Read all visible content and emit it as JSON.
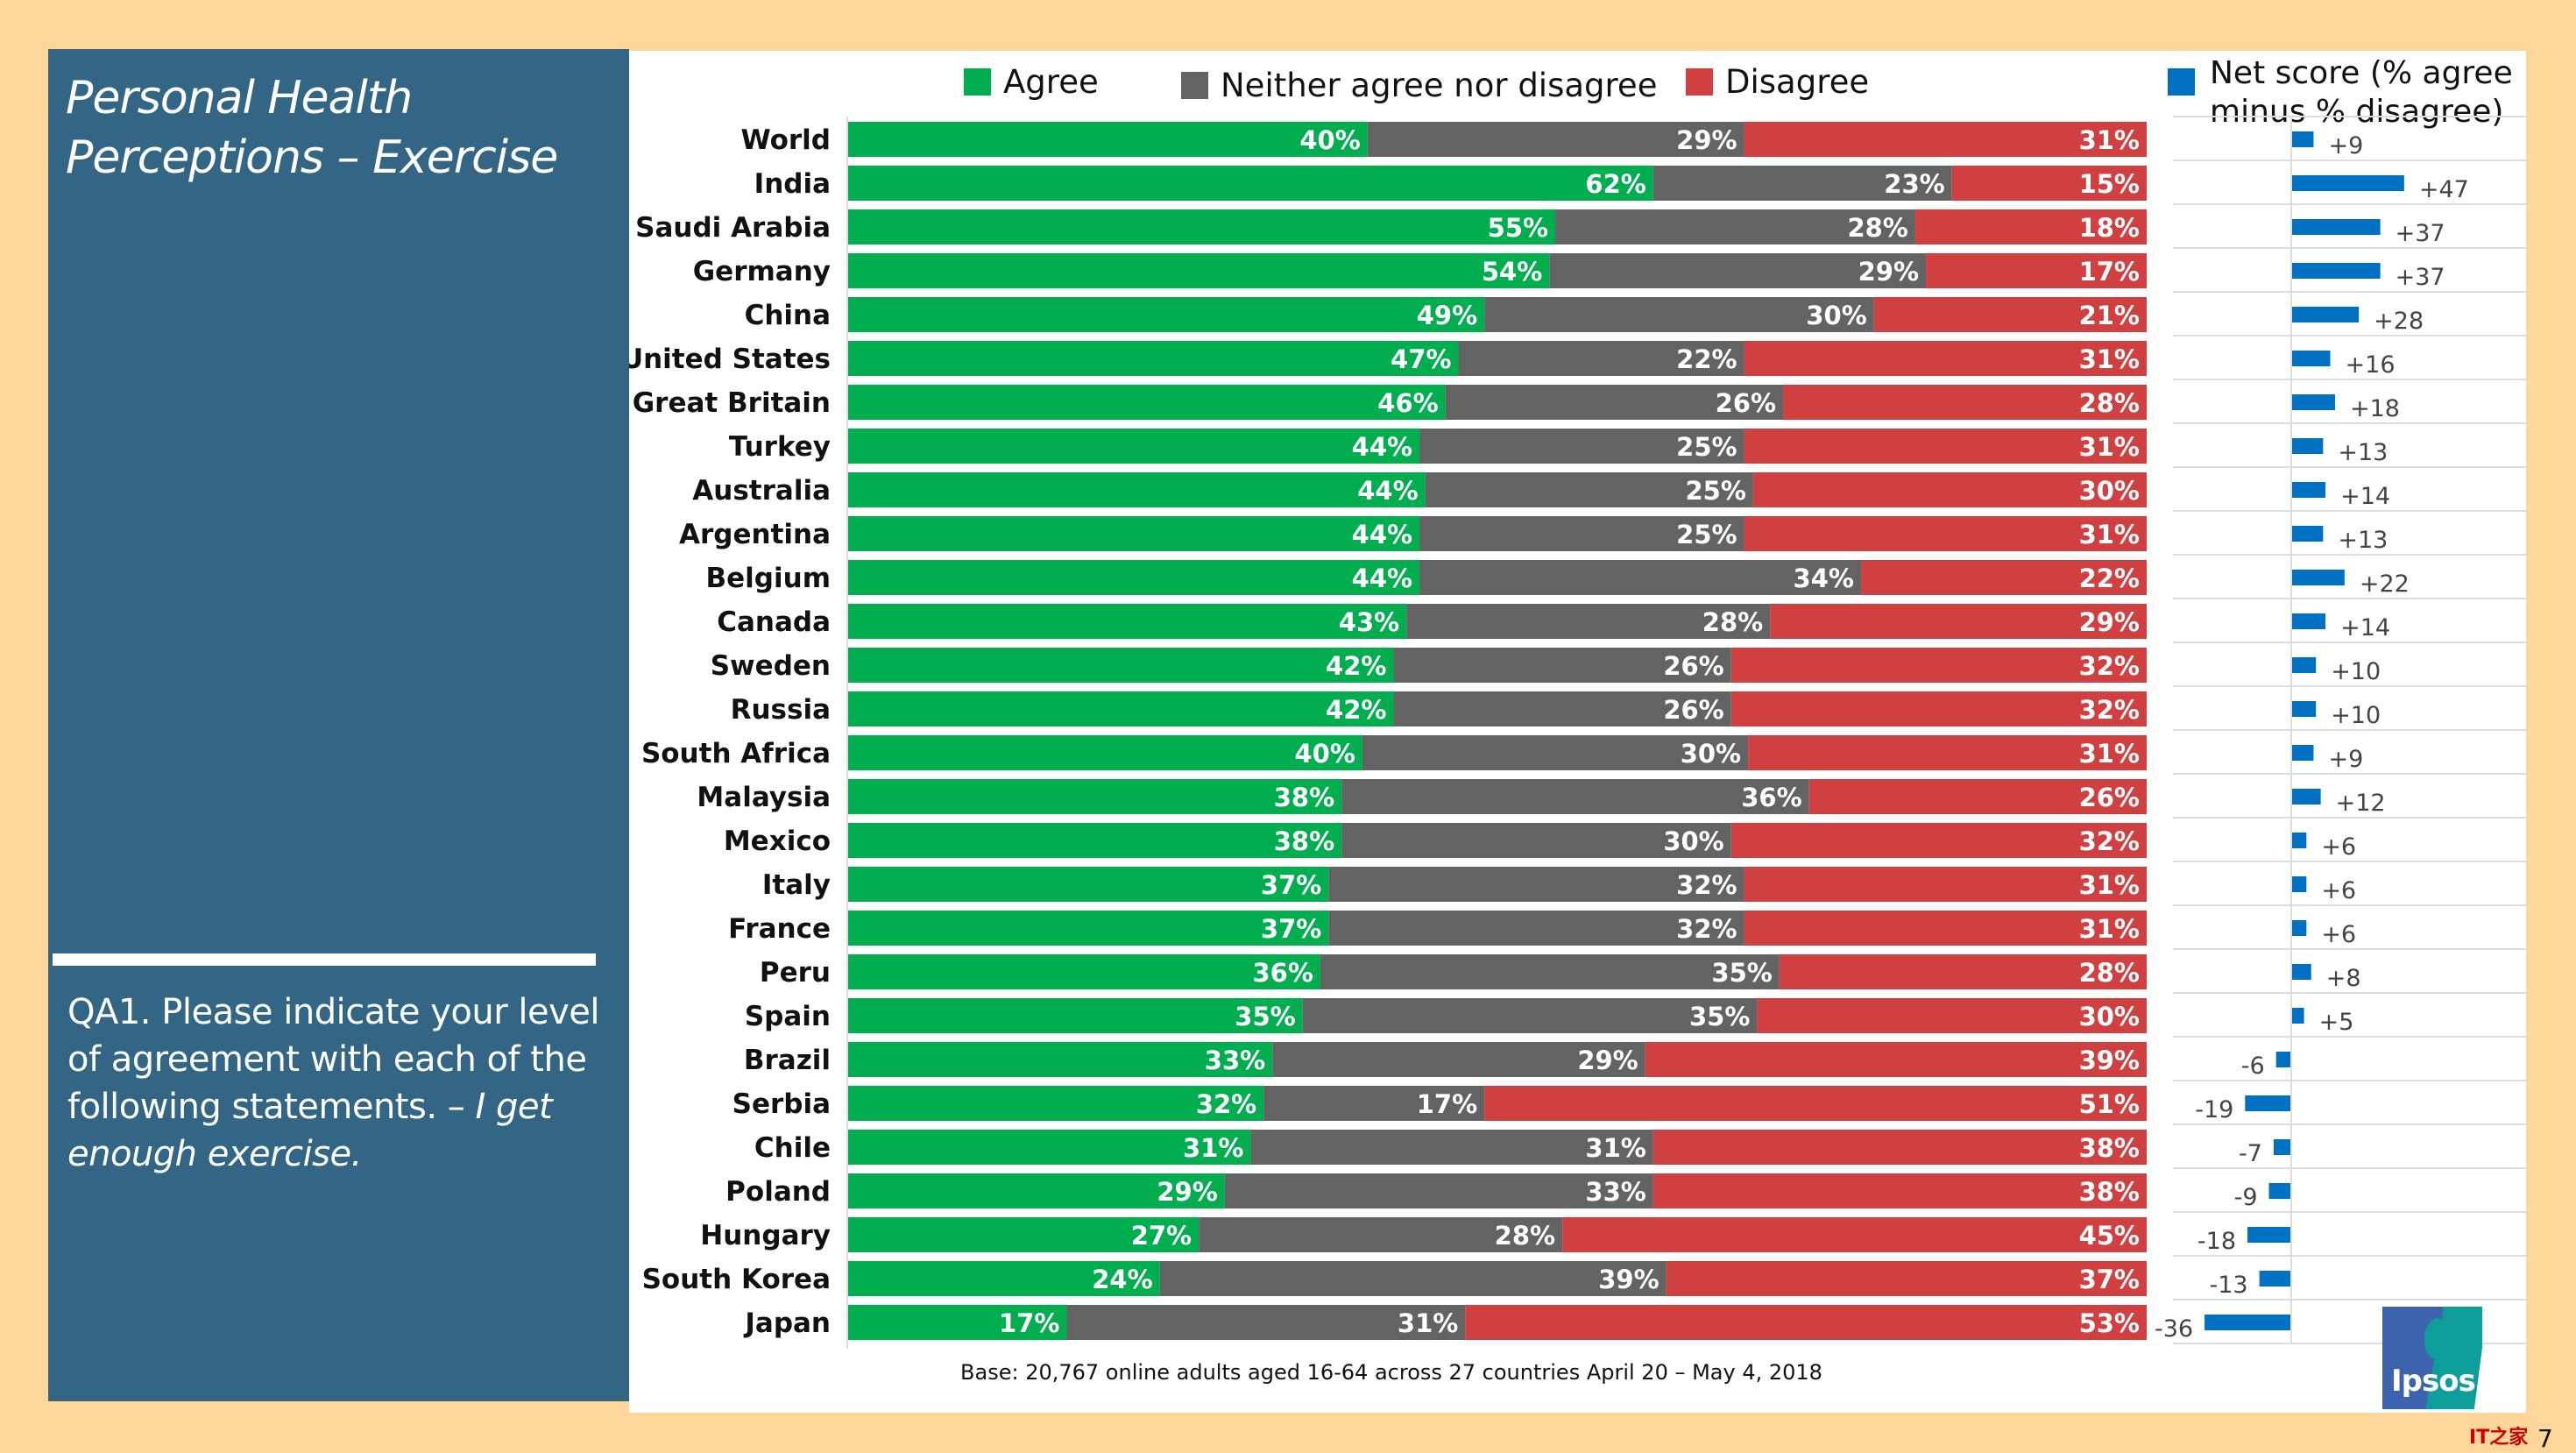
{
  "slide": {
    "title": "Personal Health Perceptions – Exercise",
    "question_plain": "QA1. Please indicate your level of agreement with each of the following statements. – ",
    "question_italic": "I get enough exercise.",
    "base_note": "Base: 20,767 online adults aged 16-64 across 27 countries  April 20 – May 4, 2018",
    "logo_text": "Ipsos",
    "watermark": "IT之家",
    "page_number": "7"
  },
  "colors": {
    "agree": "#00AE50",
    "neither": "#636363",
    "disagree": "#D04040",
    "net": "#0070C0",
    "panel": "#336684",
    "background": "#FDD699"
  },
  "chart_data": [
    {
      "type": "bar",
      "orientation": "horizontal-stacked-100",
      "title": "",
      "legend": [
        "Agree",
        "Neither agree nor disagree",
        "Disagree"
      ],
      "legend_position": "top",
      "value_format": "percent",
      "categories": [
        "World",
        "India",
        "Saudi Arabia",
        "Germany",
        "China",
        "United States",
        "Great Britain",
        "Turkey",
        "Australia",
        "Argentina",
        "Belgium",
        "Canada",
        "Sweden",
        "Russia",
        "South Africa",
        "Malaysia",
        "Mexico",
        "Italy",
        "France",
        "Peru",
        "Spain",
        "Brazil",
        "Serbia",
        "Chile",
        "Poland",
        "Hungary",
        "South Korea",
        "Japan"
      ],
      "series": [
        {
          "name": "Agree",
          "values": [
            40,
            62,
            55,
            54,
            49,
            47,
            46,
            44,
            44,
            44,
            44,
            43,
            42,
            42,
            40,
            38,
            38,
            37,
            37,
            36,
            35,
            33,
            32,
            31,
            29,
            27,
            24,
            17
          ]
        },
        {
          "name": "Neither agree nor disagree",
          "values": [
            29,
            23,
            28,
            29,
            30,
            22,
            26,
            25,
            25,
            25,
            34,
            28,
            26,
            26,
            30,
            36,
            30,
            32,
            32,
            35,
            35,
            29,
            17,
            31,
            33,
            28,
            39,
            31
          ]
        },
        {
          "name": "Disagree",
          "values": [
            31,
            15,
            18,
            17,
            21,
            31,
            28,
            31,
            30,
            31,
            22,
            29,
            32,
            32,
            31,
            26,
            32,
            31,
            31,
            28,
            30,
            39,
            51,
            38,
            38,
            45,
            37,
            53
          ]
        }
      ],
      "xlim": [
        0,
        100
      ]
    },
    {
      "type": "bar",
      "orientation": "horizontal-diverging",
      "title": "Net score (% agree minus % disagree)",
      "legend": [
        "Net score (% agree minus % disagree)"
      ],
      "legend_position": "top",
      "categories": [
        "World",
        "India",
        "Saudi Arabia",
        "Germany",
        "China",
        "United States",
        "Great Britain",
        "Turkey",
        "Australia",
        "Argentina",
        "Belgium",
        "Canada",
        "Sweden",
        "Russia",
        "South Africa",
        "Malaysia",
        "Mexico",
        "Italy",
        "France",
        "Peru",
        "Spain",
        "Brazil",
        "Serbia",
        "Chile",
        "Poland",
        "Hungary",
        "South Korea",
        "Japan"
      ],
      "values": [
        9,
        47,
        37,
        37,
        28,
        16,
        18,
        13,
        14,
        13,
        22,
        14,
        10,
        10,
        9,
        12,
        6,
        6,
        6,
        8,
        5,
        -6,
        -19,
        -7,
        -9,
        -18,
        -13,
        -36
      ],
      "labels": [
        "+9",
        "+47",
        "+37",
        "+37",
        "+28",
        "+16",
        "+18",
        "+13",
        "+14",
        "+13",
        "+22",
        "+14",
        "+10",
        "+10",
        "+9",
        "+12",
        "+6",
        "+6",
        "+6",
        "+8",
        "+5",
        "-6",
        "-19",
        "-7",
        "-9",
        "-18",
        "-13",
        "-36"
      ],
      "grid": true,
      "xlim": [
        -40,
        50
      ]
    }
  ]
}
